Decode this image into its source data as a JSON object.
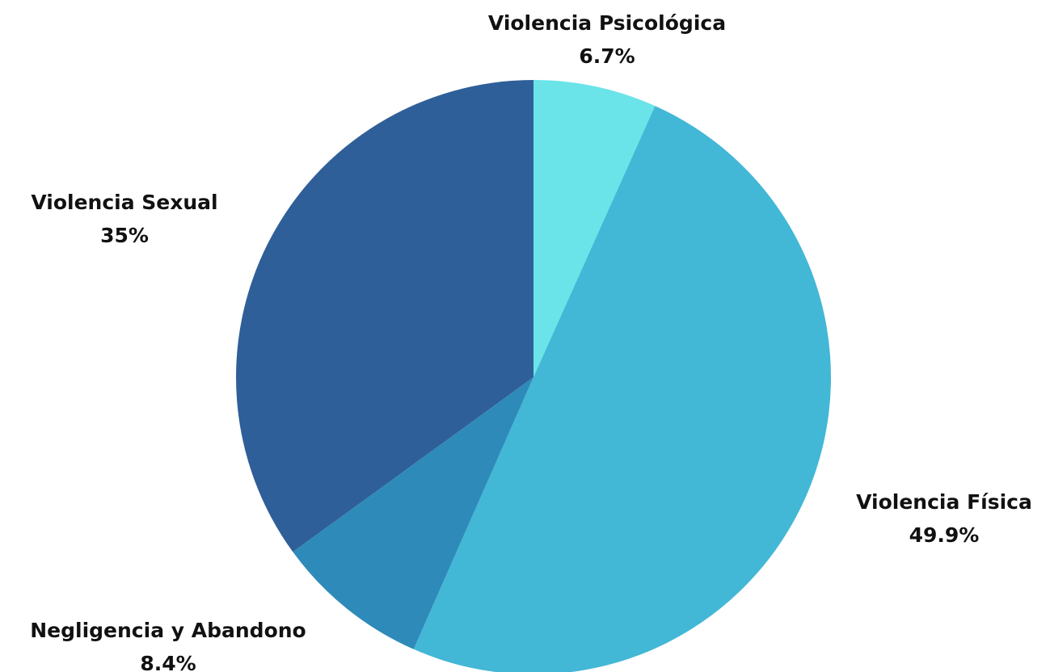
{
  "chart_data": {
    "type": "pie",
    "title": "",
    "start_angle_deg": 0,
    "direction": "clockwise",
    "slices": [
      {
        "name": "Violencia Psicológica",
        "value": 6.7,
        "value_label": "6.7%",
        "color": "#6ae4e8"
      },
      {
        "name": "Violencia Física",
        "value": 49.9,
        "value_label": "49.9%",
        "color": "#43b7d6"
      },
      {
        "name": "Negligencia y Abandono",
        "value": 8.4,
        "value_label": "8.4%",
        "color": "#2e8bb9"
      },
      {
        "name": "Violencia Sexual",
        "value": 35,
        "value_label": "35%",
        "color": "#2f5f98"
      }
    ]
  }
}
